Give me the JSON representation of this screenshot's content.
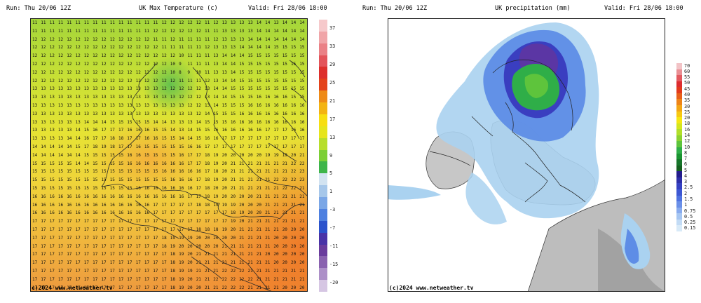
{
  "left": {
    "run": "Run: Thu 20/06 12Z",
    "title": "UK Max Temperature (c)",
    "valid": "Valid: Fri 28/06 18:00",
    "copyright": "c)2024 www.netweather.tv",
    "colorbar_labels": [
      "37",
      "33",
      "29",
      "25",
      "21",
      "17",
      "13",
      "9",
      "5",
      "1",
      "-3",
      "-7",
      "-11",
      "-15",
      "-20"
    ],
    "colorbar_colors": [
      "#f6c9cb",
      "#f0a5a8",
      "#ea8186",
      "#e3545a",
      "#dd2f2c",
      "#e3421a",
      "#ee8a16",
      "#f3b311",
      "#f7de10",
      "#e6e51b",
      "#b7de2b",
      "#7ccf35",
      "#3eb54a",
      "#d2e3f1",
      "#a6c7ea",
      "#7aa6e6",
      "#4e80e0",
      "#2b53cc",
      "#4933a7",
      "#6a3c9d",
      "#8a62b0",
      "#ad90c8",
      "#d6c6e3"
    ]
  },
  "right": {
    "run": "Run: Thu 20/06 12Z",
    "title": "UK precipitation (mm)",
    "valid": "Valid: Fri 28/06 18:00",
    "copyright": "(c)2024 www.netweather.tv",
    "colorbar_labels": [
      "70",
      "60",
      "55",
      "50",
      "45",
      "40",
      "35",
      "30",
      "25",
      "20",
      "18",
      "16",
      "14",
      "12",
      "10",
      "8",
      "7",
      "6",
      "5",
      "4",
      "3",
      "2.5",
      "2",
      "1.5",
      "1",
      "0.75",
      "0.5",
      "0.25",
      "0.15"
    ],
    "colorbar_colors": [
      "#f2c3c6",
      "#ea8f94",
      "#e35a60",
      "#dd2c2f",
      "#e23a1c",
      "#e8601a",
      "#ee8417",
      "#f3a614",
      "#f7c812",
      "#f5e712",
      "#d4e61e",
      "#b2df2a",
      "#8bd232",
      "#5ec43c",
      "#2fae48",
      "#1b9431",
      "#17762b",
      "#15601f",
      "#241c8b",
      "#2d2ea7",
      "#3541c2",
      "#3d57d3",
      "#4f72e0",
      "#6a8fe8",
      "#88abee",
      "#a6c6f2",
      "#c2dbf5",
      "#d8eaf8"
    ]
  },
  "temperature_grid": [
    [
      11,
      11,
      11,
      11,
      11,
      11,
      11,
      11,
      11,
      11,
      11,
      11,
      11,
      11,
      11,
      12,
      12,
      12,
      12,
      12,
      11,
      12,
      13,
      13,
      13,
      13,
      14,
      14,
      13,
      14,
      14,
      14
    ],
    [
      11,
      11,
      11,
      11,
      11,
      11,
      11,
      11,
      11,
      11,
      11,
      11,
      11,
      11,
      12,
      12,
      12,
      12,
      12,
      12,
      11,
      11,
      13,
      13,
      13,
      13,
      14,
      14,
      14,
      14,
      14,
      14
    ],
    [
      12,
      12,
      12,
      12,
      12,
      12,
      12,
      12,
      12,
      12,
      12,
      12,
      12,
      12,
      11,
      11,
      12,
      11,
      11,
      11,
      11,
      12,
      13,
      13,
      13,
      14,
      14,
      14,
      14,
      14,
      14,
      14
    ],
    [
      12,
      12,
      12,
      12,
      12,
      12,
      12,
      12,
      12,
      12,
      12,
      12,
      12,
      12,
      12,
      11,
      11,
      11,
      11,
      11,
      12,
      13,
      13,
      13,
      14,
      14,
      14,
      14,
      15,
      15,
      15,
      15
    ],
    [
      12,
      12,
      12,
      12,
      12,
      12,
      12,
      12,
      12,
      12,
      12,
      12,
      12,
      12,
      12,
      12,
      12,
      10,
      11,
      11,
      11,
      13,
      14,
      14,
      14,
      15,
      15,
      15,
      15,
      15,
      15,
      15
    ],
    [
      12,
      12,
      12,
      12,
      12,
      12,
      12,
      12,
      12,
      12,
      12,
      12,
      12,
      12,
      12,
      12,
      10,
      9,
      11,
      11,
      11,
      13,
      14,
      14,
      15,
      15,
      15,
      15,
      15,
      15,
      15,
      15
    ],
    [
      12,
      12,
      12,
      12,
      12,
      12,
      12,
      12,
      12,
      12,
      12,
      12,
      12,
      12,
      12,
      12,
      10,
      8,
      9,
      10,
      11,
      13,
      13,
      14,
      15,
      15,
      15,
      15,
      15,
      15,
      15,
      15
    ],
    [
      12,
      12,
      12,
      12,
      12,
      12,
      12,
      12,
      12,
      12,
      12,
      12,
      12,
      12,
      12,
      12,
      12,
      11,
      11,
      11,
      12,
      13,
      14,
      14,
      15,
      15,
      15,
      15,
      15,
      15,
      15,
      15
    ],
    [
      13,
      13,
      13,
      13,
      13,
      13,
      13,
      13,
      13,
      13,
      13,
      13,
      13,
      13,
      13,
      12,
      12,
      12,
      12,
      12,
      13,
      14,
      14,
      15,
      15,
      15,
      15,
      15,
      15,
      15,
      15,
      15
    ],
    [
      13,
      13,
      13,
      13,
      13,
      13,
      13,
      13,
      13,
      13,
      13,
      13,
      13,
      13,
      13,
      13,
      13,
      12,
      12,
      12,
      13,
      14,
      14,
      15,
      15,
      15,
      16,
      16,
      16,
      16,
      15,
      15
    ],
    [
      13,
      13,
      13,
      13,
      13,
      13,
      13,
      13,
      13,
      13,
      13,
      13,
      13,
      13,
      13,
      13,
      13,
      13,
      12,
      12,
      13,
      14,
      15,
      15,
      15,
      16,
      16,
      16,
      16,
      16,
      16,
      16
    ],
    [
      13,
      13,
      13,
      13,
      13,
      13,
      13,
      13,
      13,
      13,
      13,
      13,
      13,
      13,
      13,
      13,
      13,
      13,
      13,
      12,
      14,
      15,
      15,
      15,
      16,
      16,
      16,
      16,
      16,
      16,
      16,
      16
    ],
    [
      13,
      13,
      13,
      13,
      13,
      13,
      14,
      14,
      14,
      15,
      15,
      15,
      15,
      15,
      14,
      14,
      13,
      13,
      13,
      14,
      15,
      15,
      15,
      16,
      16,
      16,
      16,
      16,
      16,
      16,
      16,
      16
    ],
    [
      13,
      13,
      13,
      13,
      13,
      14,
      15,
      16,
      17,
      17,
      17,
      16,
      16,
      16,
      15,
      15,
      14,
      13,
      14,
      15,
      15,
      16,
      16,
      16,
      16,
      16,
      16,
      17,
      17,
      17,
      16,
      16
    ],
    [
      13,
      13,
      13,
      13,
      14,
      14,
      16,
      17,
      17,
      18,
      18,
      17,
      17,
      16,
      16,
      15,
      15,
      14,
      14,
      15,
      16,
      16,
      17,
      17,
      17,
      17,
      17,
      17,
      17,
      17,
      17,
      17
    ],
    [
      14,
      14,
      14,
      14,
      14,
      15,
      17,
      18,
      19,
      18,
      17,
      17,
      16,
      15,
      15,
      15,
      15,
      15,
      16,
      16,
      17,
      17,
      17,
      17,
      17,
      17,
      17,
      17,
      17,
      17,
      17,
      17
    ],
    [
      14,
      14,
      14,
      14,
      14,
      14,
      15,
      15,
      15,
      15,
      15,
      16,
      16,
      15,
      15,
      15,
      15,
      16,
      17,
      17,
      18,
      19,
      20,
      20,
      20,
      20,
      20,
      19,
      19,
      19,
      20,
      21
    ],
    [
      15,
      15,
      15,
      15,
      15,
      14,
      14,
      15,
      15,
      15,
      15,
      16,
      16,
      16,
      16,
      16,
      16,
      16,
      17,
      17,
      18,
      19,
      20,
      21,
      21,
      21,
      21,
      21,
      21,
      21,
      22,
      22
    ],
    [
      15,
      15,
      15,
      15,
      15,
      15,
      15,
      15,
      15,
      15,
      15,
      15,
      15,
      15,
      15,
      16,
      16,
      16,
      16,
      16,
      17,
      18,
      20,
      21,
      21,
      21,
      21,
      21,
      21,
      21,
      22,
      23
    ],
    [
      15,
      15,
      15,
      15,
      15,
      15,
      15,
      15,
      15,
      15,
      15,
      15,
      15,
      15,
      15,
      15,
      16,
      16,
      16,
      17,
      18,
      19,
      20,
      21,
      21,
      21,
      21,
      21,
      22,
      22,
      22,
      23
    ],
    [
      15,
      15,
      15,
      15,
      15,
      15,
      15,
      15,
      15,
      15,
      15,
      15,
      16,
      16,
      16,
      16,
      16,
      16,
      16,
      17,
      18,
      20,
      20,
      21,
      21,
      21,
      21,
      21,
      21,
      22,
      22,
      21
    ],
    [
      16,
      16,
      16,
      16,
      16,
      16,
      16,
      16,
      16,
      16,
      16,
      16,
      16,
      16,
      16,
      16,
      16,
      16,
      17,
      17,
      18,
      19,
      20,
      20,
      20,
      20,
      21,
      21,
      21,
      21,
      21,
      21
    ],
    [
      16,
      16,
      16,
      16,
      16,
      16,
      16,
      16,
      16,
      16,
      16,
      16,
      16,
      16,
      17,
      17,
      17,
      17,
      17,
      18,
      18,
      19,
      19,
      19,
      20,
      20,
      20,
      21,
      21,
      21,
      21,
      21
    ],
    [
      16,
      16,
      16,
      16,
      16,
      16,
      16,
      16,
      16,
      16,
      16,
      16,
      16,
      16,
      17,
      17,
      17,
      17,
      17,
      17,
      17,
      17,
      17,
      18,
      19,
      20,
      20,
      21,
      21,
      21,
      21,
      21
    ],
    [
      17,
      17,
      17,
      17,
      17,
      17,
      17,
      17,
      17,
      17,
      17,
      17,
      17,
      17,
      17,
      17,
      17,
      17,
      17,
      17,
      17,
      17,
      17,
      19,
      20,
      21,
      21,
      21,
      21,
      21,
      21,
      21
    ],
    [
      17,
      17,
      17,
      17,
      17,
      17,
      17,
      17,
      17,
      17,
      17,
      17,
      17,
      17,
      17,
      17,
      17,
      17,
      17,
      18,
      18,
      18,
      19,
      20,
      21,
      21,
      21,
      21,
      21,
      20,
      20,
      20
    ],
    [
      17,
      17,
      17,
      17,
      17,
      17,
      17,
      17,
      17,
      17,
      17,
      17,
      17,
      17,
      17,
      18,
      19,
      19,
      19,
      20,
      20,
      20,
      20,
      20,
      21,
      21,
      21,
      21,
      20,
      20,
      20,
      20
    ],
    [
      17,
      17,
      17,
      17,
      17,
      17,
      17,
      17,
      17,
      17,
      17,
      17,
      17,
      17,
      17,
      18,
      19,
      20,
      20,
      20,
      20,
      20,
      21,
      21,
      21,
      21,
      21,
      21,
      20,
      20,
      20,
      20
    ],
    [
      17,
      17,
      17,
      17,
      17,
      17,
      17,
      17,
      17,
      17,
      17,
      17,
      17,
      17,
      17,
      17,
      18,
      19,
      20,
      21,
      21,
      21,
      21,
      21,
      21,
      21,
      21,
      20,
      20,
      20,
      20,
      20
    ],
    [
      17,
      17,
      17,
      17,
      17,
      17,
      17,
      17,
      17,
      17,
      17,
      17,
      17,
      17,
      17,
      17,
      18,
      19,
      20,
      21,
      21,
      21,
      21,
      21,
      21,
      21,
      21,
      21,
      20,
      20,
      20,
      20
    ],
    [
      17,
      17,
      17,
      17,
      17,
      17,
      17,
      17,
      17,
      17,
      17,
      17,
      17,
      17,
      17,
      17,
      18,
      19,
      19,
      21,
      21,
      21,
      22,
      22,
      22,
      21,
      21,
      21,
      21,
      21,
      21,
      21
    ],
    [
      17,
      17,
      17,
      17,
      17,
      17,
      17,
      17,
      17,
      17,
      17,
      17,
      17,
      17,
      17,
      17,
      18,
      19,
      20,
      21,
      21,
      22,
      22,
      22,
      22,
      22,
      21,
      21,
      21,
      21,
      21,
      21
    ],
    [
      17,
      17,
      17,
      17,
      17,
      17,
      17,
      17,
      17,
      17,
      17,
      17,
      17,
      17,
      17,
      17,
      18,
      19,
      20,
      20,
      21,
      21,
      22,
      22,
      22,
      21,
      21,
      21,
      21,
      20,
      20,
      20
    ]
  ]
}
